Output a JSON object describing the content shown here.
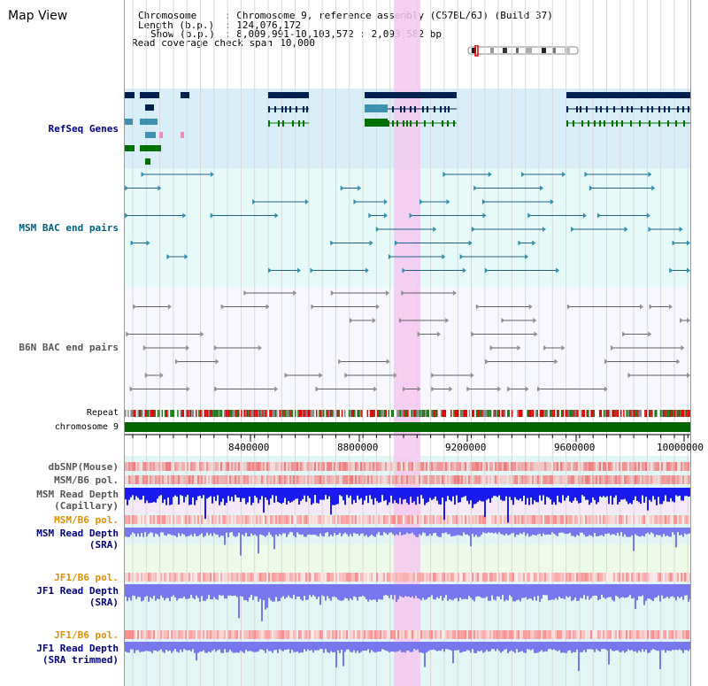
{
  "title": "Map View",
  "info": {
    "chromosome_key": "Chromosome",
    "chromosome_val": ": Chromosome 9, reference assembly (C57BL/6J) (Build 37)",
    "length_key": "Length (b.p.)",
    "length_val": ": 124,076,172",
    "show_key": "Show (b.p.)",
    "show_val": ": 8,009,991-10,103,572 : 2,093,582 bp",
    "coverage_key": "Read coverage check span",
    "coverage_val": ": 10,000"
  },
  "tracks": {
    "refseq": "RefSeq Genes",
    "msm_bac": "MSM BAC end pairs",
    "b6n_bac": "B6N BAC end pairs",
    "repeat": "Repeat",
    "chromosome": "chromosome 9",
    "dbsnp": "dbSNP(Mouse)",
    "msm_b6_pol_1": "MSM/B6 pol.",
    "msm_depth_cap_1": "MSM Read Depth",
    "msm_depth_cap_2": "(Capillary)",
    "msm_b6_pol_2": "MSM/B6 pol.",
    "msm_depth_sra_1": "MSM Read Depth",
    "msm_depth_sra_2": "(SRA)",
    "jf1_b6_pol_1": "JF1/B6 pol.",
    "jf1_depth_sra_1": "JF1 Read Depth",
    "jf1_depth_sra_2": "(SRA)",
    "jf1_b6_pol_2": "JF1/B6 pol.",
    "jf1_depth_trim_1": "JF1 Read Depth",
    "jf1_depth_trim_2": "(SRA trimmed)"
  },
  "axis_ticks": [
    "8400000",
    "8800000",
    "9200000",
    "9600000",
    "10000000"
  ],
  "colors": {
    "refseq_bg": "#d8effa",
    "bac_bg": "#e6fafa",
    "highlight": "#f5c8f0",
    "label_blue": "#000080",
    "label_teal": "#006080",
    "label_orange": "#e09000",
    "chromosome_green": "#006400",
    "depth_blue": "#1a1aee",
    "depth_lightblue": "#7878ee"
  }
}
